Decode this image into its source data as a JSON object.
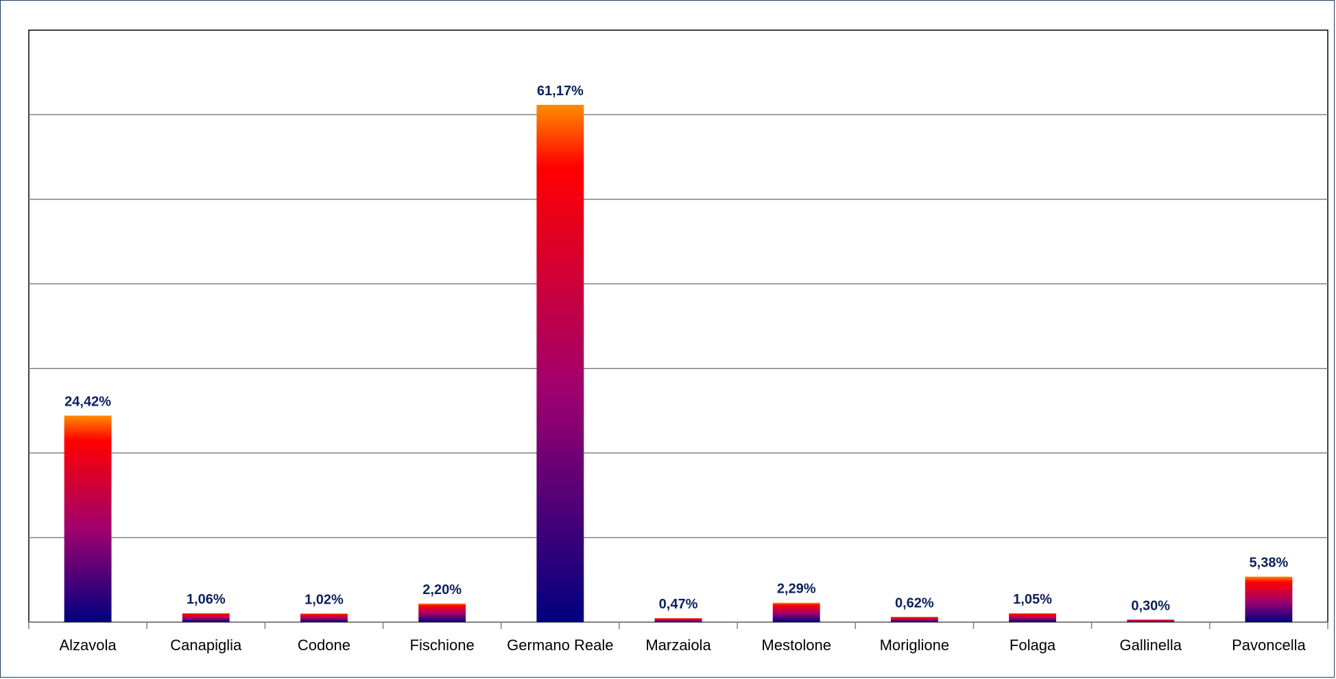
{
  "chart_data": {
    "type": "bar",
    "categories": [
      "Alzavola",
      "Canapiglia",
      "Codone",
      "Fischione",
      "Germano Reale",
      "Marzaiola",
      "Mestolone",
      "Moriglione",
      "Folaga",
      "Gallinella",
      "Pavoncella"
    ],
    "values": [
      24.42,
      1.06,
      1.02,
      2.2,
      61.17,
      0.47,
      2.29,
      0.62,
      1.05,
      0.3,
      5.38
    ],
    "value_labels": [
      "24,42%",
      "1,06%",
      "1,02%",
      "2,20%",
      "61,17%",
      "0,47%",
      "2,29%",
      "0,62%",
      "1,05%",
      "0,30%",
      "5,38%"
    ],
    "title": "",
    "xlabel": "",
    "ylabel": "",
    "ylim": [
      0,
      70
    ],
    "y_tick_step": 10,
    "grid": true,
    "legend": "none",
    "colors": {
      "bar_gradient_top": "#ff8c00",
      "bar_gradient_upper": "#ff0000",
      "bar_gradient_mid": "#a0006e",
      "bar_gradient_bottom": "#000080",
      "value_label": "#0b1f5c",
      "gridline": "#808080",
      "frame": "#1f3a68"
    }
  }
}
